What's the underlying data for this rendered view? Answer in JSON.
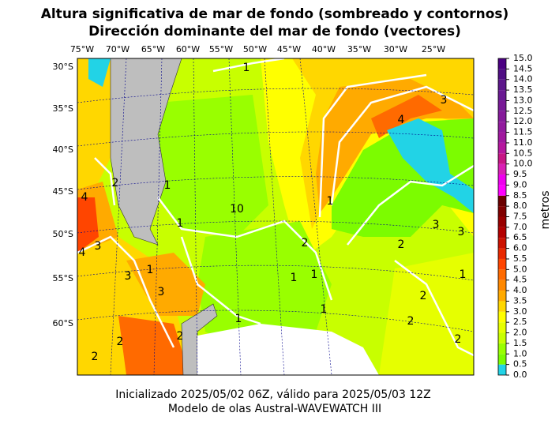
{
  "header": {
    "title_line1": "Altura significativa de mar de fondo (sombreado y contornos)",
    "title_line2": "Dirección dominante del mar de fondo (vectores)"
  },
  "map": {
    "lon_labels": [
      "75°W",
      "70°W",
      "65°W",
      "60°W",
      "55°W",
      "50°W",
      "45°W",
      "40°W",
      "35°W",
      "30°W",
      "25°W"
    ],
    "lat_labels": [
      "30°S",
      "35°S",
      "40°S",
      "45°S",
      "50°S",
      "55°S",
      "60°S"
    ],
    "contour_labels": [
      "1",
      "4",
      "3",
      "1",
      "2",
      "4",
      "1",
      "2",
      "3",
      "3",
      "2",
      "1",
      "1",
      "1",
      "1",
      "2",
      "2",
      "2",
      "2",
      "3",
      "4",
      "3",
      "3",
      "1",
      "10",
      "1",
      "2",
      "1",
      "2"
    ]
  },
  "colorbar": {
    "label": "metros",
    "ticks": [
      {
        "value": 0,
        "label": "0.0"
      },
      {
        "value": 0.5,
        "label": "0.5"
      },
      {
        "value": 1,
        "label": "1.0"
      },
      {
        "value": 1.5,
        "label": "1.5"
      },
      {
        "value": 2,
        "label": "2.0"
      },
      {
        "value": 2.5,
        "label": "2.5"
      },
      {
        "value": 3,
        "label": "3.0"
      },
      {
        "value": 3.5,
        "label": "3.5"
      },
      {
        "value": 4,
        "label": "4.0"
      },
      {
        "value": 4.5,
        "label": "4.5"
      },
      {
        "value": 5,
        "label": "5.0"
      },
      {
        "value": 5.5,
        "label": "5.5"
      },
      {
        "value": 6,
        "label": "6.0"
      },
      {
        "value": 6.5,
        "label": "6.5"
      },
      {
        "value": 7,
        "label": "7.0"
      },
      {
        "value": 7.5,
        "label": "7.5"
      },
      {
        "value": 8,
        "label": "8.0"
      },
      {
        "value": 8.5,
        "label": "8.5"
      },
      {
        "value": 9,
        "label": "9.0"
      },
      {
        "value": 9.5,
        "label": "9.5"
      },
      {
        "value": 10,
        "label": "10.0"
      },
      {
        "value": 10.5,
        "label": "10.5"
      },
      {
        "value": 11,
        "label": "11.0"
      },
      {
        "value": 11.5,
        "label": "11.5"
      },
      {
        "value": 12,
        "label": "12.0"
      },
      {
        "value": 12.5,
        "label": "12.5"
      },
      {
        "value": 13,
        "label": "13.0"
      },
      {
        "value": 13.5,
        "label": "13.5"
      },
      {
        "value": 14,
        "label": "14.0"
      },
      {
        "value": 14.5,
        "label": "14.5"
      },
      {
        "value": 15,
        "label": "15.0"
      }
    ],
    "colors": [
      "#22d3e6",
      "#7cfc00",
      "#99ff00",
      "#c8ff00",
      "#e6ff00",
      "#ffff00",
      "#ffd700",
      "#ffaa00",
      "#ff8800",
      "#ff6a00",
      "#ff4500",
      "#e82800",
      "#cc1100",
      "#b30000",
      "#990000",
      "#800000",
      "#6a0000",
      "#ff00ff",
      "#ee00ee",
      "#d91fb5",
      "#c71585",
      "#b5179e",
      "#a0189e",
      "#921a9e",
      "#851a9a",
      "#781a96",
      "#6a1a92",
      "#5c178a",
      "#500f84",
      "#4b0082"
    ]
  },
  "footer": {
    "line1": "Inicializado 2025/05/02 06Z, válido para 2025/05/03 12Z",
    "line2": "Modelo de olas Austral-WAVEWATCH III"
  }
}
